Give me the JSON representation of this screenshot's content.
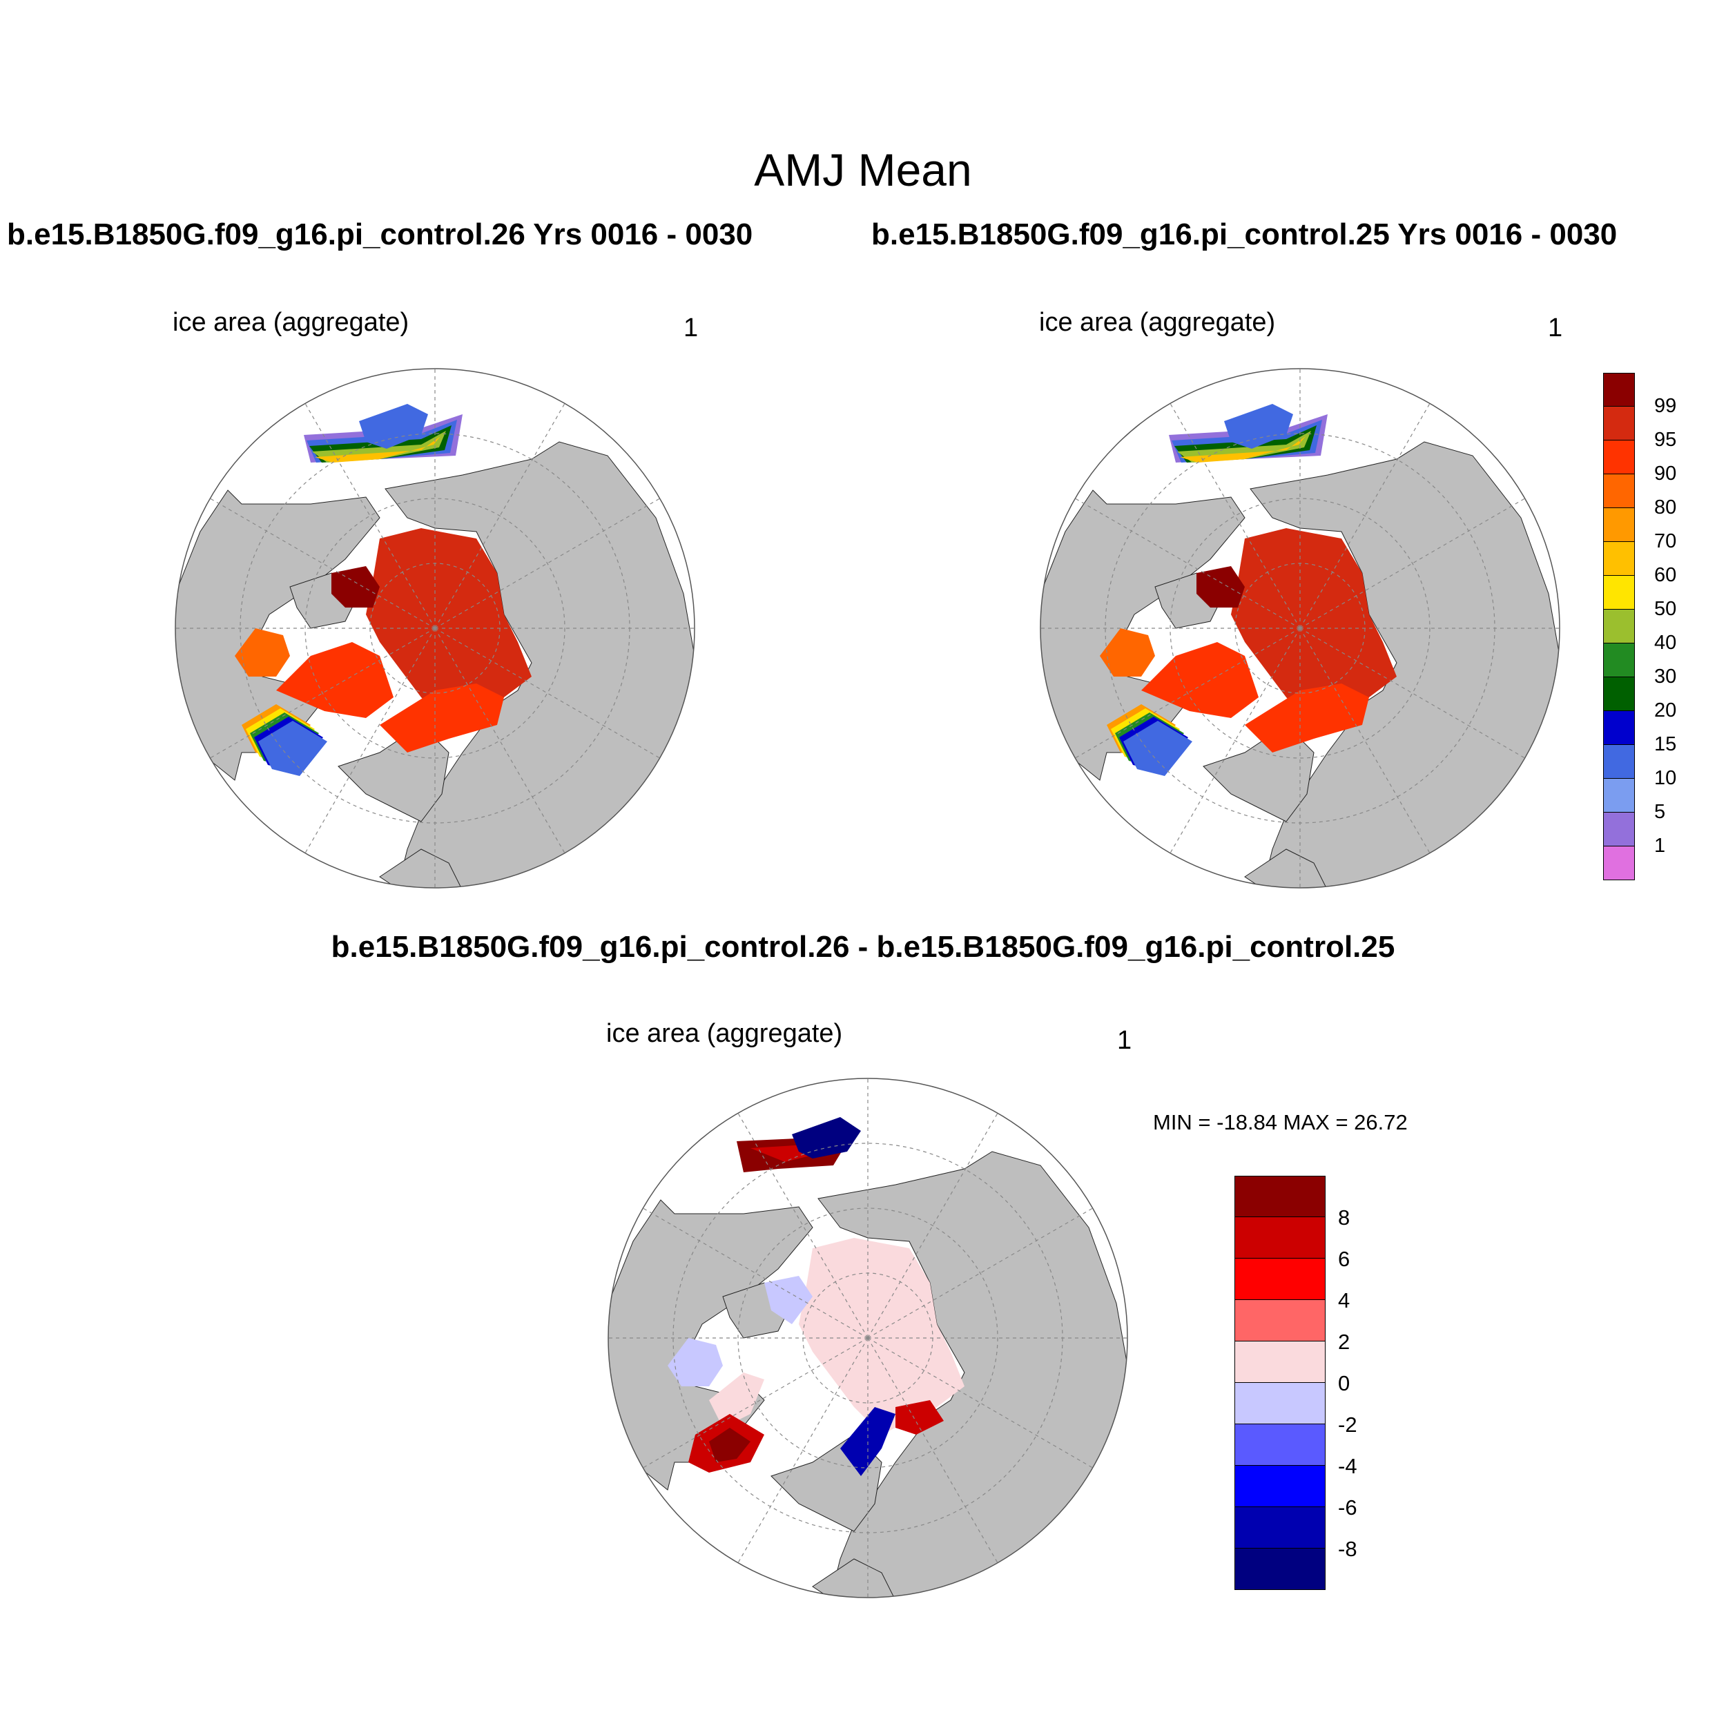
{
  "title": "AMJ Mean",
  "panels": {
    "left": {
      "header": "b.e15.B1850G.f09_g16.pi_control.26  Yrs 0016 - 0030",
      "variable": "ice area  (aggregate)",
      "unit": "1"
    },
    "right": {
      "header": "b.e15.B1850G.f09_g16.pi_control.25  Yrs 0016 - 0030",
      "variable": "ice area  (aggregate)",
      "unit": "1"
    },
    "diff": {
      "header": "b.e15.B1850G.f09_g16.pi_control.26 - b.e15.B1850G.f09_g16.pi_control.25",
      "variable": "ice area  (aggregate)",
      "unit": "1",
      "minmax": "MIN = -18.84 MAX =  26.72"
    }
  },
  "colorbar_abs": {
    "levels": [
      "99",
      "95",
      "90",
      "80",
      "70",
      "60",
      "50",
      "40",
      "30",
      "20",
      "15",
      "10",
      "5",
      "1"
    ],
    "colors": [
      "#8b0000",
      "#d42a10",
      "#ff3300",
      "#ff6600",
      "#ff9900",
      "#ffc000",
      "#ffe500",
      "#9bbf2e",
      "#228b22",
      "#006000",
      "#0000cd",
      "#4169e1",
      "#7b9df0",
      "#9370db",
      "#e070e0"
    ]
  },
  "colorbar_diff": {
    "levels": [
      "8",
      "6",
      "4",
      "2",
      "0",
      "-2",
      "-4",
      "-6",
      "-8"
    ],
    "colors": [
      "#8b0000",
      "#cc0000",
      "#ff0000",
      "#ff6666",
      "#fadadd",
      "#c8c8ff",
      "#5a5aff",
      "#0000ff",
      "#0000b0",
      "#000080"
    ]
  },
  "map_colors": {
    "land": "#bebebe",
    "ocean": "#ffffff",
    "grid": "#888888"
  }
}
